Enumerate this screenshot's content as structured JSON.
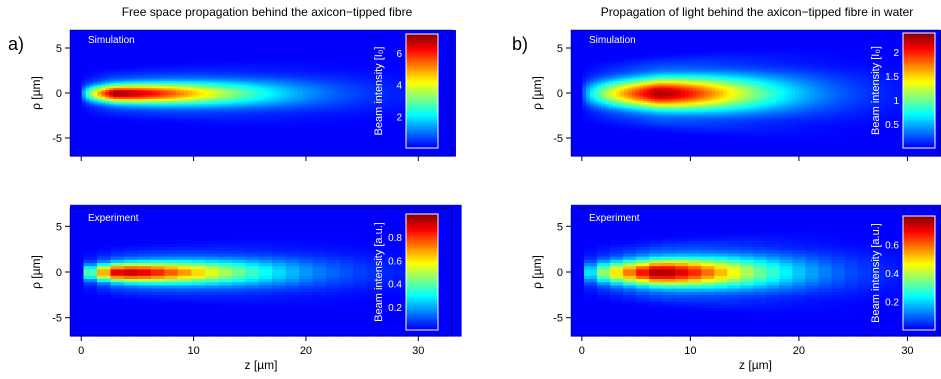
{
  "chart_data": [
    {
      "panel_letter": "a)",
      "title": "Free space propagation behind the axicon−tipped fibre",
      "type": "heatmap",
      "subplots": [
        {
          "label": "Simulation",
          "ylabel": "ρ [µm]",
          "xlim": [
            -1,
            33
          ],
          "ylim": [
            -7,
            7
          ],
          "yticks": [
            5,
            0,
            -5
          ],
          "colorbar": {
            "label": "Beam intensity [I₀]",
            "min": 0,
            "max": 7.2,
            "ticks": [
              2,
              4,
              6
            ]
          },
          "beam": {
            "peak_z": 3,
            "peak_value": 7,
            "radius_near": 0.6,
            "radius_far": 1.6,
            "z_end": 30
          }
        },
        {
          "label": "Experiment",
          "ylabel": "ρ [µm]",
          "xlabel": "z [µm]",
          "xlim": [
            -1,
            33
          ],
          "ylim": [
            -7,
            7
          ],
          "xticks": [
            0,
            10,
            20,
            30
          ],
          "yticks": [
            5,
            0,
            -5
          ],
          "colorbar": {
            "label": "Beam intensity [a.u.]",
            "min": 0,
            "max": 1,
            "ticks": [
              0.2,
              0.4,
              0.6,
              0.8
            ]
          },
          "beam": {
            "peak_z": 3.5,
            "peak_value": 0.95,
            "radius_near": 0.6,
            "radius_far": 1.6,
            "z_end": 30
          }
        }
      ]
    },
    {
      "panel_letter": "b)",
      "title": "Propagation of light behind the axicon−tipped fibre in water",
      "type": "heatmap",
      "subplots": [
        {
          "label": "Simulation",
          "ylabel": "ρ [µm]",
          "xlim": [
            -1,
            33
          ],
          "ylim": [
            -7,
            7
          ],
          "yticks": [
            5,
            0,
            -5
          ],
          "colorbar": {
            "label": "Beam intensity [I₀]",
            "min": 0,
            "max": 2.4,
            "ticks": [
              0.5,
              1,
              1.5,
              2
            ]
          },
          "beam": {
            "peak_z": 7,
            "peak_value": 2.3,
            "radius_near": 1.0,
            "radius_far": 2.0,
            "z_end": 30
          }
        },
        {
          "label": "Experiment",
          "ylabel": "ρ [µm]",
          "xlabel": "z [µm]",
          "xlim": [
            -1,
            33
          ],
          "ylim": [
            -7,
            7
          ],
          "xticks": [
            0,
            10,
            20,
            30
          ],
          "yticks": [
            5,
            0,
            -5
          ],
          "colorbar": {
            "label": "Beam intensity [a.u.]",
            "min": 0,
            "max": 0.8,
            "ticks": [
              0.2,
              0.4,
              0.6
            ]
          },
          "beam": {
            "peak_z": 7,
            "peak_value": 0.78,
            "radius_near": 0.8,
            "radius_far": 1.8,
            "z_end": 30
          }
        }
      ]
    }
  ]
}
